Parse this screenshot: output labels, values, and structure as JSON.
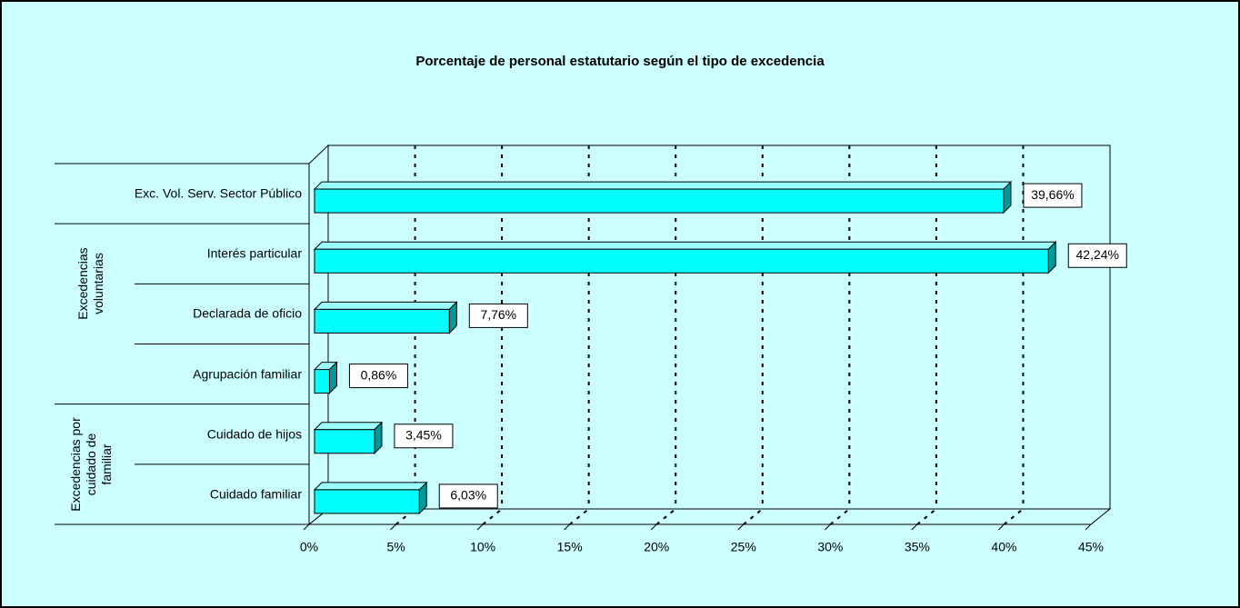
{
  "chart_data": {
    "type": "bar3d_horizontal",
    "title": "Porcentaje de personal estatutario según el tipo de excedencia",
    "categories": [
      "Exc. Vol. Serv. Sector Público",
      "Interés particular",
      "Declarada de oficio",
      "Agrupación familiar",
      "Cuidado de hijos",
      "Cuidado familiar"
    ],
    "groups": [
      {
        "label": "Excedencias voluntarias",
        "span": [
          0,
          3
        ]
      },
      {
        "label": "Excedencias por cuidado de familiar",
        "span": [
          4,
          5
        ]
      }
    ],
    "values": [
      39.66,
      42.24,
      7.76,
      0.86,
      3.45,
      6.03
    ],
    "value_labels": [
      "39,66%",
      "42,24%",
      "7,76%",
      "0,86%",
      "3,45%",
      "6,03%"
    ],
    "color": "#00ffff",
    "xlim": [
      0,
      45
    ],
    "xticks": [
      {
        "value": 0,
        "label": "0%"
      },
      {
        "value": 5,
        "label": "5%"
      },
      {
        "value": 10,
        "label": "10%"
      },
      {
        "value": 15,
        "label": "15%"
      },
      {
        "value": 20,
        "label": "20%"
      },
      {
        "value": 25,
        "label": "25%"
      },
      {
        "value": 30,
        "label": "30%"
      },
      {
        "value": 35,
        "label": "35%"
      },
      {
        "value": 40,
        "label": "40%"
      },
      {
        "value": 45,
        "label": "45%"
      }
    ],
    "grid": true
  }
}
